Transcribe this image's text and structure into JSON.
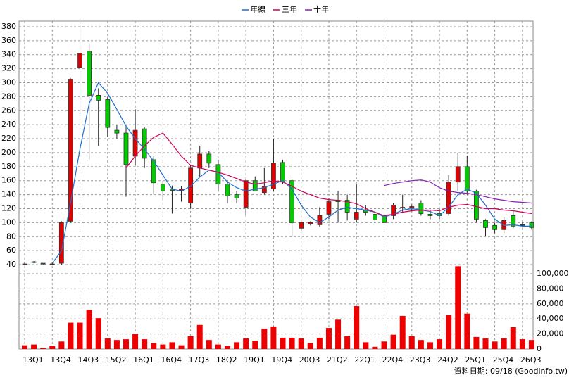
{
  "chart_data": {
    "type": "candlestick",
    "categories": [
      "13Q1",
      null,
      null,
      "13Q4",
      null,
      null,
      "14Q3",
      null,
      null,
      "15Q2",
      null,
      null,
      "16Q1",
      null,
      null,
      "16Q4",
      null,
      null,
      "17Q3",
      null,
      null,
      "18Q2",
      null,
      null,
      "19Q1",
      null,
      null,
      "19Q4",
      null,
      null,
      "20Q3",
      null,
      null,
      "21Q2",
      null,
      null,
      "22Q1",
      null,
      null,
      "22Q4",
      null,
      null,
      "23Q3",
      null,
      null,
      "24Q2",
      null,
      null,
      "25Q1",
      null,
      null,
      "25Q4",
      null,
      null,
      "26Q3",
      null
    ],
    "open": [
      41,
      44,
      42,
      41,
      42,
      102,
      322,
      345,
      282,
      276,
      232,
      228,
      195,
      234,
      190,
      155,
      148,
      146,
      128,
      178,
      198,
      183,
      155,
      140,
      122,
      160,
      143,
      148,
      186,
      160,
      92,
      98,
      97,
      112,
      132,
      132,
      105,
      118,
      112,
      110,
      110,
      122,
      121,
      128,
      112,
      113,
      113,
      158,
      180,
      145,
      103,
      96,
      90,
      110,
      96,
      100
    ],
    "high": [
      43,
      45,
      42,
      44,
      102,
      306,
      382,
      355,
      292,
      280,
      240,
      240,
      262,
      236,
      195,
      160,
      153,
      152,
      182,
      210,
      202,
      190,
      160,
      145,
      162,
      166,
      178,
      220,
      190,
      162,
      102,
      102,
      122,
      135,
      145,
      140,
      155,
      125,
      115,
      125,
      128,
      140,
      126,
      132,
      118,
      120,
      168,
      200,
      196,
      147,
      105,
      100,
      108,
      118,
      100,
      102
    ],
    "low": [
      39,
      42,
      40,
      39,
      40,
      100,
      255,
      190,
      210,
      222,
      220,
      137,
      182,
      178,
      140,
      133,
      113,
      130,
      120,
      165,
      178,
      145,
      128,
      128,
      110,
      145,
      140,
      145,
      155,
      80,
      88,
      96,
      94,
      105,
      100,
      103,
      100,
      110,
      100,
      98,
      105,
      115,
      116,
      110,
      105,
      105,
      110,
      145,
      140,
      100,
      80,
      85,
      85,
      92,
      93,
      90
    ],
    "close": [
      41,
      43,
      41,
      41,
      100,
      305,
      342,
      282,
      275,
      236,
      228,
      183,
      232,
      192,
      157,
      145,
      146,
      148,
      178,
      198,
      185,
      155,
      138,
      135,
      160,
      145,
      152,
      185,
      158,
      100,
      100,
      100,
      110,
      130,
      130,
      115,
      115,
      115,
      104,
      100,
      125,
      122,
      123,
      113,
      110,
      110,
      158,
      180,
      145,
      105,
      93,
      90,
      103,
      95,
      97,
      93
    ],
    "up_color": "#e00000",
    "down_color": "#00cc00",
    "ylim": [
      32,
      388
    ],
    "yticks": [
      40,
      60,
      80,
      100,
      120,
      140,
      160,
      180,
      200,
      220,
      240,
      260,
      280,
      300,
      320,
      340,
      360,
      380
    ],
    "grid": true,
    "lines": [
      {
        "name": "年線",
        "color": "#1f6fd1",
        "values": [
          null,
          null,
          null,
          42,
          60,
          130,
          205,
          270,
          300,
          285,
          262,
          238,
          220,
          205,
          188,
          168,
          148,
          145,
          152,
          165,
          175,
          172,
          158,
          150,
          145,
          148,
          150,
          155,
          160,
          148,
          125,
          108,
          100,
          108,
          118,
          122,
          120,
          118,
          115,
          108,
          112,
          118,
          120,
          118,
          116,
          110,
          122,
          140,
          148,
          142,
          125,
          105,
          96,
          97,
          95,
          95
        ]
      },
      {
        "name": "三年",
        "color": "#d0005a",
        "values": [
          null,
          null,
          null,
          null,
          null,
          null,
          null,
          null,
          null,
          null,
          null,
          178,
          195,
          210,
          222,
          228,
          212,
          195,
          182,
          178,
          175,
          172,
          168,
          163,
          158,
          155,
          157,
          160,
          158,
          152,
          145,
          140,
          135,
          133,
          132,
          130,
          127,
          120,
          115,
          110,
          112,
          115,
          117,
          118,
          118,
          117,
          122,
          125,
          126,
          123,
          120,
          120,
          118,
          117,
          115,
          113
        ]
      },
      {
        "name": "十年",
        "color": "#8a1fb8",
        "values": [
          null,
          null,
          null,
          null,
          null,
          null,
          null,
          null,
          null,
          null,
          null,
          null,
          null,
          null,
          null,
          null,
          null,
          null,
          null,
          null,
          null,
          null,
          null,
          null,
          null,
          null,
          null,
          null,
          null,
          null,
          null,
          null,
          null,
          null,
          null,
          null,
          null,
          null,
          null,
          153,
          156,
          158,
          160,
          161,
          158,
          150,
          145,
          143,
          142,
          140,
          137,
          134,
          132,
          130,
          129,
          128
        ]
      }
    ],
    "volume": {
      "color": "#ee0000",
      "values": [
        5000,
        6000,
        1500,
        4000,
        10000,
        35000,
        35000,
        52000,
        41000,
        14000,
        12000,
        13000,
        20000,
        13000,
        8000,
        6000,
        9000,
        5000,
        17000,
        32000,
        12000,
        6000,
        4000,
        9000,
        14000,
        11000,
        27000,
        30000,
        15000,
        15000,
        14000,
        8000,
        15000,
        28000,
        39000,
        17000,
        57000,
        9000,
        3000,
        10000,
        19000,
        44000,
        17000,
        12000,
        9000,
        13000,
        45000,
        110000,
        47000,
        16000,
        14000,
        10000,
        14000,
        29000,
        13000,
        12000
      ],
      "ylim": [
        0,
        115000
      ],
      "yticks": [
        0,
        {
          "value": 20000,
          "label": "20,000"
        },
        {
          "value": 40000,
          "label": "40,000"
        },
        {
          "value": 60000,
          "label": "60,000"
        },
        {
          "value": 80000,
          "label": "80,000"
        },
        {
          "value": 100000,
          "label": "100,000"
        }
      ]
    },
    "footnote": "資料日期: 09/18  (Goodinfo.tw)"
  }
}
